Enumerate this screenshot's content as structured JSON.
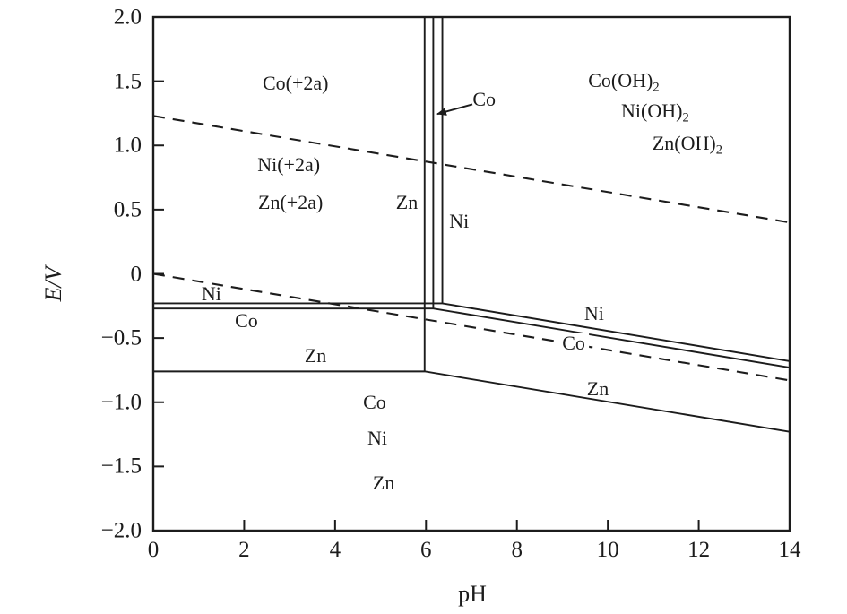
{
  "chart_data": {
    "type": "line",
    "description": "Potential vs pH (Pourbaix) diagram for Co, Ni and Zn",
    "xlabel": "pH",
    "ylabel": "E/V",
    "xlim": [
      0,
      14
    ],
    "ylim": [
      -2,
      2
    ],
    "grid": false,
    "legend": null,
    "colors": {
      "stroke": "#1c1c1c",
      "background": "#ffffff"
    },
    "xticks": [
      {
        "value": 0,
        "label": "0"
      },
      {
        "value": 2,
        "label": "2"
      },
      {
        "value": 4,
        "label": "4"
      },
      {
        "value": 6,
        "label": "6"
      },
      {
        "value": 8,
        "label": "8"
      },
      {
        "value": 10,
        "label": "10"
      },
      {
        "value": 12,
        "label": "12"
      },
      {
        "value": 14,
        "label": "14"
      }
    ],
    "yticks": [
      {
        "value": 2,
        "label": "2.0"
      },
      {
        "value": 1.5,
        "label": "1.5"
      },
      {
        "value": 1,
        "label": "1.0"
      },
      {
        "value": 0.5,
        "label": "0.5"
      },
      {
        "value": 0,
        "label": "0"
      },
      {
        "value": -0.5,
        "label": "−0.5"
      },
      {
        "value": -1,
        "label": "−1.0"
      },
      {
        "value": -1.5,
        "label": "−1.5"
      },
      {
        "value": -2,
        "label": "−2.0"
      }
    ],
    "lines": [
      {
        "name": "oxygen-water-dashed-line",
        "style": "dashed",
        "points": [
          [
            0,
            1.23
          ],
          [
            14,
            0.4
          ]
        ]
      },
      {
        "name": "hydrogen-water-dashed-line",
        "style": "dashed",
        "points": [
          [
            0,
            0.0
          ],
          [
            14,
            -0.83
          ]
        ]
      },
      {
        "name": "ni-metal-boundary-line",
        "style": "solid",
        "points": [
          [
            0,
            -0.23
          ],
          [
            6.36,
            -0.23
          ],
          [
            14,
            -0.68
          ]
        ]
      },
      {
        "name": "ni-precipitation-vertical-line",
        "style": "solid",
        "points": [
          [
            6.36,
            2.0
          ],
          [
            6.36,
            -0.23
          ]
        ]
      },
      {
        "name": "co-metal-boundary-line",
        "style": "solid",
        "points": [
          [
            0,
            -0.27
          ],
          [
            6.16,
            -0.27
          ],
          [
            14,
            -0.73
          ]
        ]
      },
      {
        "name": "co-precipitation-vertical-line",
        "style": "solid",
        "points": [
          [
            6.16,
            2.0
          ],
          [
            6.16,
            -0.27
          ]
        ]
      },
      {
        "name": "zn-metal-boundary-line",
        "style": "solid",
        "points": [
          [
            0,
            -0.76
          ],
          [
            5.97,
            -0.76
          ],
          [
            14,
            -1.23
          ]
        ]
      },
      {
        "name": "zn-precipitation-vertical-line",
        "style": "solid",
        "points": [
          [
            5.97,
            2.0
          ],
          [
            5.97,
            -0.76
          ]
        ]
      }
    ],
    "labels": [
      {
        "name": "co-aqueous-region-label",
        "text": "Co(+2a)",
        "at": [
          3.13,
          1.48
        ]
      },
      {
        "name": "ni-aqueous-region-label",
        "text": "Ni(+2a)",
        "at": [
          2.98,
          0.85
        ]
      },
      {
        "name": "zn-aqueous-region-label",
        "text": "Zn(+2a)",
        "at": [
          3.02,
          0.555
        ]
      },
      {
        "name": "zn-vertical-boundary-label",
        "text": "Zn",
        "at": [
          5.58,
          0.555
        ]
      },
      {
        "name": "ni-vertical-boundary-label",
        "text": "Ni",
        "at": [
          6.73,
          0.41
        ]
      },
      {
        "name": "co-vertical-pointer-label",
        "text": "Co",
        "at": [
          7.28,
          1.36
        ]
      },
      {
        "name": "co-hydroxide-region-label",
        "text": "Co(OH)",
        "sub": "2",
        "at": [
          10.35,
          1.49
        ]
      },
      {
        "name": "ni-hydroxide-region-label",
        "text": "Ni(OH)",
        "sub": "2",
        "at": [
          11.04,
          1.25
        ]
      },
      {
        "name": "zn-hydroxide-region-label",
        "text": "Zn(OH)",
        "sub": "2",
        "at": [
          11.75,
          1.0
        ]
      },
      {
        "name": "ni-horizontal-line-label",
        "text": "Ni",
        "at": [
          1.28,
          -0.157
        ]
      },
      {
        "name": "co-horizontal-line-label",
        "text": "Co",
        "at": [
          2.05,
          -0.367
        ]
      },
      {
        "name": "zn-horizontal-line-label",
        "text": "Zn",
        "at": [
          3.57,
          -0.64
        ]
      },
      {
        "name": "co-metal-region-label",
        "text": "Co",
        "at": [
          4.87,
          -1.0
        ]
      },
      {
        "name": "ni-metal-region-label",
        "text": "Ni",
        "at": [
          4.93,
          -1.28
        ]
      },
      {
        "name": "zn-metal-region-label",
        "text": "Zn",
        "at": [
          5.07,
          -1.63
        ]
      },
      {
        "name": "ni-sloped-line-label",
        "text": "Ni",
        "at": [
          9.7,
          -0.31
        ]
      },
      {
        "name": "co-sloped-line-label",
        "text": "Co",
        "at": [
          9.25,
          -0.54
        ],
        "bg": true
      },
      {
        "name": "zn-sloped-line-label",
        "text": "Zn",
        "at": [
          9.78,
          -0.9
        ]
      }
    ],
    "annotation_arrow": {
      "from": [
        7.02,
        1.32
      ],
      "to": [
        6.25,
        1.245
      ]
    }
  }
}
